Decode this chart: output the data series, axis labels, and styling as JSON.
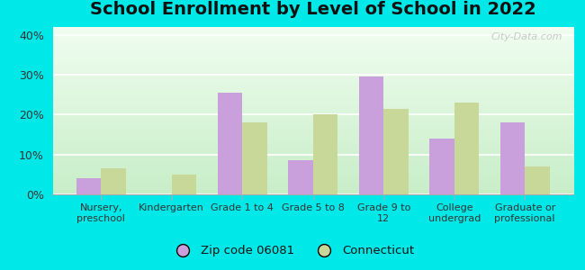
{
  "title": "School Enrollment by Level of School in 2022",
  "categories": [
    "Nursery,\npreschool",
    "Kindergarten",
    "Grade 1 to 4",
    "Grade 5 to 8",
    "Grade 9 to\n12",
    "College\nundergrad",
    "Graduate or\nprofessional"
  ],
  "zip_values": [
    4,
    0,
    25.5,
    8.5,
    29.5,
    14,
    18
  ],
  "ct_values": [
    6.5,
    5,
    18,
    20,
    21.5,
    23,
    7
  ],
  "zip_color": "#c9a0dc",
  "ct_color": "#c8d898",
  "ylim": [
    0,
    42
  ],
  "yticks": [
    0,
    10,
    20,
    30,
    40
  ],
  "ytick_labels": [
    "0%",
    "10%",
    "20%",
    "30%",
    "40%"
  ],
  "legend_zip": "Zip code 06081",
  "legend_ct": "Connecticut",
  "background_outer": "#00e8e8",
  "background_inner": "#e0f5e0",
  "watermark": "City-Data.com",
  "bar_width": 0.35,
  "title_fontsize": 14,
  "axis_label_fontsize": 8,
  "ytick_fontsize": 9
}
